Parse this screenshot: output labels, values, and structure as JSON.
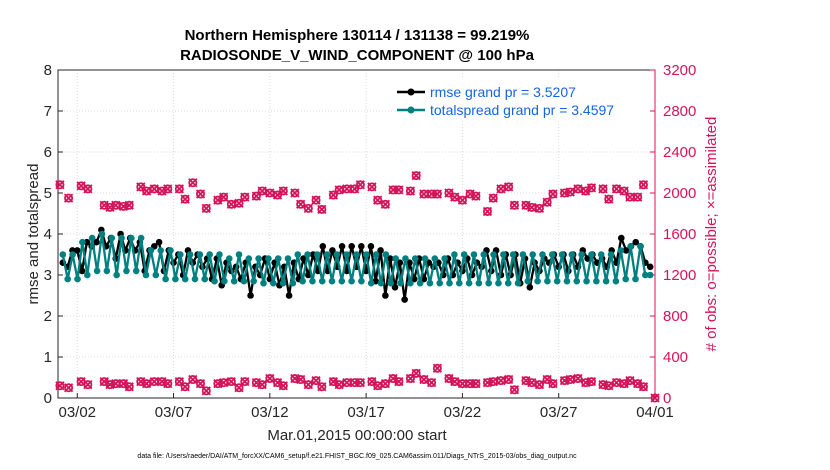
{
  "chart_data": {
    "type": "line",
    "title": "Northern Hemisphere 130114 / 131138 = 99.219%",
    "subtitle": "RADIOSONDE_V_WIND_COMPONENT @ 100 hPa",
    "xlabel": "Mar.01,2015 00:00:00 start",
    "ylabel_left": "rmse and totalspread",
    "ylabel_right": "# of obs: o=possible; ×=assimilated",
    "footnote": "data file: /Users/raeder/DAI/ATM_forcXX/CAM6_setup/f.e21.FHIST_BGC.f09_025.CAM6assim.011/Diags_NTrS_2015-03/obs_diag_output.nc",
    "x_ticks": [
      "03/02",
      "03/07",
      "03/12",
      "03/17",
      "03/22",
      "03/27",
      "04/01"
    ],
    "x_range_days": [
      0,
      31
    ],
    "y_left_range": [
      0,
      8
    ],
    "y_left_ticks": [
      "0",
      "1",
      "2",
      "3",
      "4",
      "5",
      "6",
      "7",
      "8"
    ],
    "y_right_range": [
      0,
      3200
    ],
    "y_right_ticks": [
      "0",
      "400",
      "800",
      "1200",
      "1600",
      "2000",
      "2400",
      "2800",
      "3200"
    ],
    "legend_position": "top-right",
    "grid": true,
    "colors": {
      "rmse": "#000000",
      "totalspread": "#008080",
      "obs": "#d4145a",
      "legend_text": "#1565e0"
    },
    "series": [
      {
        "name": "rmse grand pr = 3.5207",
        "axis": "left",
        "values": [
          3.3,
          3.2,
          3.6,
          3.6,
          3.1,
          3.8,
          3.7,
          3.8,
          4.1,
          3.7,
          3.9,
          3.4,
          4.0,
          3.6,
          3.9,
          3.6,
          3.8,
          3.1,
          3.6,
          3.7,
          3.8,
          3.1,
          3.6,
          3.3,
          3.5,
          3.0,
          3.6,
          3.3,
          3.5,
          3.2,
          3.4,
          2.9,
          3.4,
          2.75,
          3.3,
          3.1,
          3.2,
          2.9,
          3.3,
          2.5,
          3.2,
          3.0,
          3.4,
          2.9,
          3.3,
          2.75,
          3.2,
          2.5,
          3.3,
          2.9,
          3.4,
          3.0,
          3.5,
          3.1,
          3.7,
          3.1,
          3.6,
          3.2,
          3.7,
          3.1,
          3.7,
          3.2,
          3.7,
          3.1,
          3.7,
          2.85,
          3.6,
          2.5,
          3.4,
          2.7,
          3.3,
          2.4,
          3.3,
          2.9,
          3.4,
          2.9,
          3.3,
          3.2,
          3.3,
          3.0,
          3.4,
          3.0,
          3.3,
          3.1,
          3.4,
          3.0,
          3.3,
          3.2,
          3.6,
          3.1,
          3.6,
          3.0,
          3.5,
          3.0,
          3.5,
          2.8,
          3.4,
          2.7,
          3.3,
          3.1,
          3.4,
          3.3,
          3.5,
          3.2,
          3.5,
          3.1,
          3.5,
          3.2,
          3.6,
          3.4,
          3.5,
          3.3,
          3.4,
          3.2,
          3.6,
          3.3,
          3.9,
          3.6,
          3.7,
          3.8,
          3.7,
          3.3,
          3.2
        ]
      },
      {
        "name": "totalspread grand pr = 3.4597",
        "axis": "left",
        "values": [
          3.5,
          2.9,
          3.5,
          2.9,
          3.8,
          3.0,
          3.9,
          3.1,
          4.0,
          3.1,
          3.9,
          3.0,
          3.9,
          3.1,
          3.9,
          3.1,
          3.9,
          3.0,
          3.6,
          3.0,
          3.6,
          2.9,
          3.6,
          2.9,
          3.5,
          2.9,
          3.5,
          2.9,
          3.5,
          2.9,
          3.5,
          2.85,
          3.5,
          2.85,
          3.4,
          2.85,
          3.5,
          2.85,
          3.4,
          2.85,
          3.4,
          2.8,
          3.4,
          2.8,
          3.4,
          2.8,
          3.4,
          2.8,
          3.5,
          2.85,
          3.5,
          2.85,
          3.5,
          2.85,
          3.5,
          2.85,
          3.5,
          2.85,
          3.5,
          2.85,
          3.5,
          2.85,
          3.5,
          2.8,
          3.5,
          2.8,
          3.5,
          2.8,
          3.4,
          2.8,
          3.4,
          2.8,
          3.4,
          2.8,
          3.4,
          2.8,
          3.4,
          2.8,
          3.4,
          2.8,
          3.5,
          2.8,
          3.5,
          2.8,
          3.5,
          2.8,
          3.5,
          2.8,
          3.5,
          2.8,
          3.5,
          2.8,
          3.5,
          2.8,
          3.5,
          2.85,
          3.5,
          2.85,
          3.5,
          2.85,
          3.5,
          2.85,
          3.5,
          2.85,
          3.5,
          2.85,
          3.5,
          2.85,
          3.5,
          2.85,
          3.5,
          2.85,
          3.5,
          2.85,
          3.6,
          2.9,
          3.7,
          2.9,
          3.7,
          3.0,
          3.0
        ]
      },
      {
        "name": "obs possible",
        "axis": "right",
        "x": [
          0.1,
          0.55,
          1.2,
          1.55,
          2.4,
          2.7,
          3.0,
          3.4,
          3.7,
          4.3,
          4.6,
          5.0,
          5.4,
          5.7,
          6.3,
          6.6,
          7.0,
          7.4,
          7.7,
          8.3,
          8.6,
          9.0,
          9.4,
          9.7,
          10.3,
          10.6,
          11.0,
          11.4,
          11.7,
          12.3,
          12.6,
          13.0,
          13.4,
          13.7,
          14.3,
          14.6,
          15.0,
          15.4,
          15.7,
          16.3,
          16.6,
          17.0,
          17.4,
          17.7,
          18.3,
          18.6,
          19.0,
          19.4,
          19.7,
          20.3,
          20.6,
          21.0,
          21.4,
          21.7,
          22.3,
          22.6,
          23.0,
          23.4,
          23.7,
          24.3,
          24.6,
          25.0,
          25.4,
          25.7,
          26.3,
          26.6,
          27.0,
          27.4,
          27.7,
          28.3,
          28.6,
          29.0,
          29.4,
          29.7,
          30.1,
          30.4
        ],
        "values": [
          2080,
          1950,
          2070,
          2040,
          1880,
          1860,
          1880,
          1870,
          1880,
          2060,
          2020,
          2040,
          2020,
          2040,
          2040,
          1940,
          2100,
          1990,
          1850,
          1930,
          1960,
          1890,
          1900,
          1960,
          1970,
          2020,
          2000,
          1980,
          2020,
          2000,
          1890,
          1850,
          1930,
          1840,
          1980,
          2030,
          2040,
          2040,
          2080,
          2060,
          1930,
          1890,
          2030,
          2030,
          2020,
          2170,
          1990,
          1990,
          1990,
          2000,
          1960,
          1930,
          1990,
          1970,
          1820,
          1950,
          2040,
          2060,
          1880,
          1880,
          1860,
          1850,
          1910,
          1990,
          2000,
          2010,
          2040,
          2020,
          2050,
          2040,
          1940,
          2040,
          2020,
          1960,
          1960,
          2080
        ]
      },
      {
        "name": "obs assimilated",
        "axis": "right",
        "x": [
          0.1,
          0.55,
          1.2,
          1.55,
          2.4,
          2.7,
          3.0,
          3.4,
          3.7,
          4.3,
          4.6,
          5.0,
          5.4,
          5.7,
          6.3,
          6.6,
          7.0,
          7.4,
          7.7,
          8.3,
          8.6,
          9.0,
          9.4,
          9.7,
          10.3,
          10.6,
          11.0,
          11.4,
          11.7,
          12.3,
          12.6,
          13.0,
          13.4,
          13.7,
          14.3,
          14.6,
          15.0,
          15.4,
          15.7,
          16.3,
          16.6,
          17.0,
          17.4,
          17.7,
          18.3,
          18.6,
          19.0,
          19.4,
          19.7,
          20.3,
          20.6,
          21.0,
          21.4,
          21.7,
          22.3,
          22.6,
          23.0,
          23.4,
          23.7,
          24.3,
          24.6,
          25.0,
          25.4,
          25.7,
          26.3,
          26.6,
          27.0,
          27.4,
          27.7,
          28.3,
          28.6,
          29.0,
          29.4,
          29.7,
          30.1,
          30.4
        ],
        "values": [
          120,
          100,
          160,
          130,
          160,
          130,
          140,
          140,
          110,
          160,
          140,
          160,
          160,
          140,
          160,
          110,
          180,
          140,
          70,
          140,
          150,
          160,
          100,
          160,
          150,
          130,
          190,
          150,
          120,
          190,
          180,
          130,
          170,
          110,
          160,
          130,
          150,
          150,
          150,
          160,
          120,
          140,
          190,
          160,
          190,
          240,
          180,
          150,
          290,
          190,
          160,
          140,
          140,
          140,
          150,
          160,
          170,
          180,
          80,
          170,
          150,
          130,
          180,
          140,
          170,
          180,
          190,
          150,
          160,
          130,
          120,
          150,
          140,
          170,
          140,
          110
        ]
      }
    ]
  }
}
